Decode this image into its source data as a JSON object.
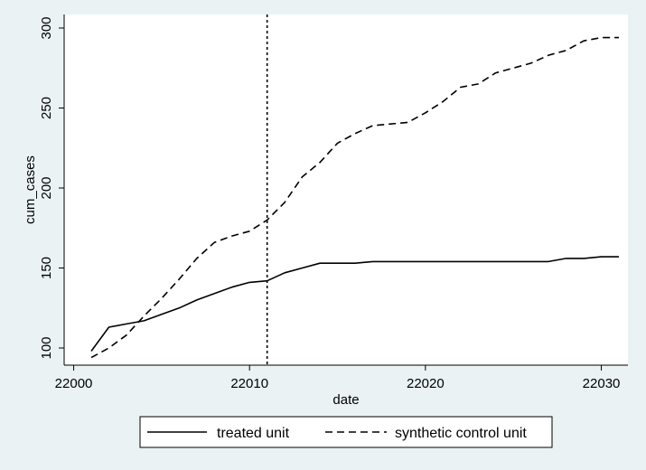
{
  "chart_data": {
    "type": "line",
    "title": "",
    "xlabel": "date",
    "ylabel": "cum_cases",
    "xlim": [
      22001,
      22031
    ],
    "ylim": [
      94,
      306
    ],
    "xticks": [
      22000,
      22010,
      22020,
      22030
    ],
    "yticks": [
      100,
      150,
      200,
      250,
      300
    ],
    "x_tick_labels": [
      "22000",
      "22010",
      "22020",
      "22030"
    ],
    "y_tick_labels": [
      "100",
      "150",
      "200",
      "250",
      "300"
    ],
    "grid": false,
    "legend_position": "bottom",
    "reference_line": {
      "x": 22011,
      "style": "dotted"
    },
    "x": [
      22001,
      22002,
      22003,
      22004,
      22005,
      22006,
      22007,
      22008,
      22009,
      22010,
      22011,
      22012,
      22013,
      22014,
      22015,
      22016,
      22017,
      22018,
      22019,
      22020,
      22021,
      22022,
      22023,
      22024,
      22025,
      22026,
      22027,
      22028,
      22029,
      22030,
      22031
    ],
    "series": [
      {
        "name": "treated unit",
        "style": "solid",
        "color": "#000000",
        "values": [
          98,
          113,
          115,
          117,
          121,
          125,
          130,
          134,
          138,
          141,
          142,
          147,
          150,
          153,
          153,
          153,
          154,
          154,
          154,
          154,
          154,
          154,
          154,
          154,
          154,
          154,
          154,
          156,
          156,
          157,
          157
        ]
      },
      {
        "name": "synthetic control unit",
        "style": "dashed",
        "color": "#000000",
        "values": [
          94,
          100,
          108,
          120,
          131,
          143,
          156,
          166,
          170,
          173,
          180,
          191,
          207,
          216,
          228,
          234,
          239,
          240,
          241,
          247,
          254,
          263,
          265,
          272,
          275,
          278,
          283,
          286,
          292,
          294,
          294
        ]
      }
    ]
  }
}
